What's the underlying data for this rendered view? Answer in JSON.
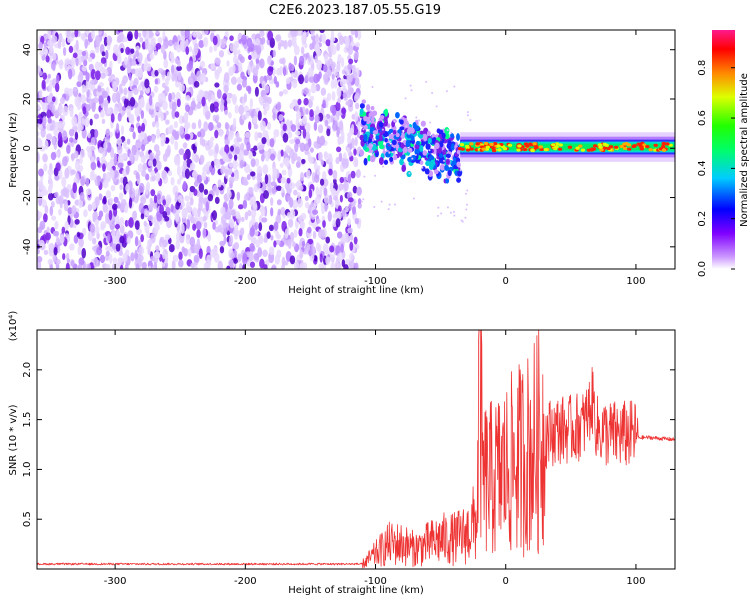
{
  "figure_title": "C2E6.2023.187.05.55.G19",
  "colors": {
    "snr_line": "#ee3333",
    "spectrum_low": "#cfa8ff",
    "spectrum_mid": "#6a00e0"
  },
  "chart_data": [
    {
      "type": "heatmap",
      "title": "",
      "xlabel": "Height of straight line (km)",
      "ylabel": "Frequency (Hz)",
      "xlim": [
        -360,
        130
      ],
      "ylim": [
        -49,
        48
      ],
      "xticks": [
        -300,
        -200,
        -100,
        0,
        100
      ],
      "yticks": [
        -40,
        -20,
        0,
        20,
        40
      ],
      "colorbar": {
        "label": "Normalized spectral amplitude",
        "range": [
          0,
          0.95
        ],
        "ticks": [
          "0.0",
          "0.2",
          "0.4",
          "0.6",
          "0.8"
        ],
        "colormap": "rainbow (magenta-blue-cyan-green-yellow-red-pink)"
      },
      "regions": [
        {
          "x_range": [
            -360,
            -112
          ],
          "freq_range": [
            -49,
            48
          ],
          "amplitude": "low (0.0-0.2), noise-like speckle"
        },
        {
          "x_range": [
            -112,
            -35
          ],
          "freq_range": [
            -20,
            14
          ],
          "amplitude": "0.2-0.5, wandering signal"
        },
        {
          "x_range": [
            -35,
            130
          ],
          "freq_range": [
            -2,
            3
          ],
          "amplitude": "0.4-0.9, narrow line near 0 Hz"
        }
      ]
    },
    {
      "type": "line",
      "title": "",
      "xlabel": "Height of straight line (km)",
      "ylabel": "SNR (10 * v/v)",
      "multiplier_label": "(x10⁴)",
      "xlim": [
        -360,
        130
      ],
      "ylim": [
        0,
        2.4
      ],
      "xticks": [
        -300,
        -200,
        -100,
        0,
        100
      ],
      "yticks": [
        "0.5",
        "1.0",
        "1.5",
        "2.0"
      ],
      "series": [
        {
          "x": [
            -360,
            -300,
            -200,
            -110,
            -100,
            -90,
            -80,
            -70,
            -60,
            -50,
            -40,
            -30,
            -22,
            -20,
            -18,
            -10,
            0,
            10,
            20,
            30,
            40,
            50,
            60,
            67,
            70,
            80,
            100,
            102,
            110,
            130
          ],
          "y": [
            0.05,
            0.05,
            0.05,
            0.05,
            0.15,
            0.25,
            0.25,
            0.2,
            0.25,
            0.3,
            0.3,
            0.35,
            0.5,
            2.38,
            0.9,
            0.9,
            1.0,
            1.1,
            1.2,
            1.35,
            1.4,
            1.4,
            1.45,
            1.7,
            1.4,
            1.35,
            1.35,
            1.32,
            1.32,
            1.3
          ]
        }
      ]
    }
  ]
}
